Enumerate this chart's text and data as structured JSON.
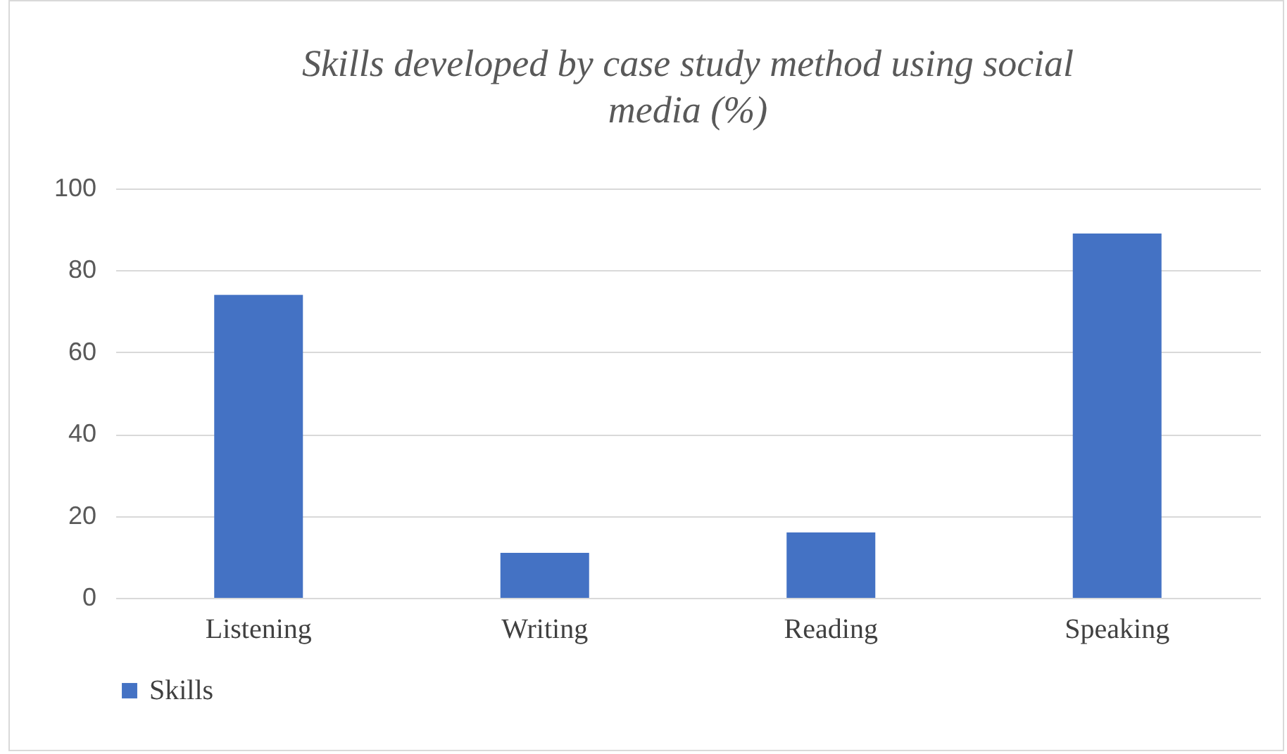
{
  "chart_data": {
    "type": "bar",
    "title": "Skills developed by case study method using social media (%)",
    "categories": [
      "Listening",
      "Writing",
      "Reading",
      "Speaking"
    ],
    "series": [
      {
        "name": "Skills",
        "color": "#4472c4",
        "values": [
          74,
          11,
          16,
          89
        ]
      }
    ],
    "ylim": [
      0,
      100
    ],
    "yticks": [
      0,
      20,
      40,
      60,
      80,
      100
    ],
    "grid": "y",
    "legend": "bottom"
  }
}
